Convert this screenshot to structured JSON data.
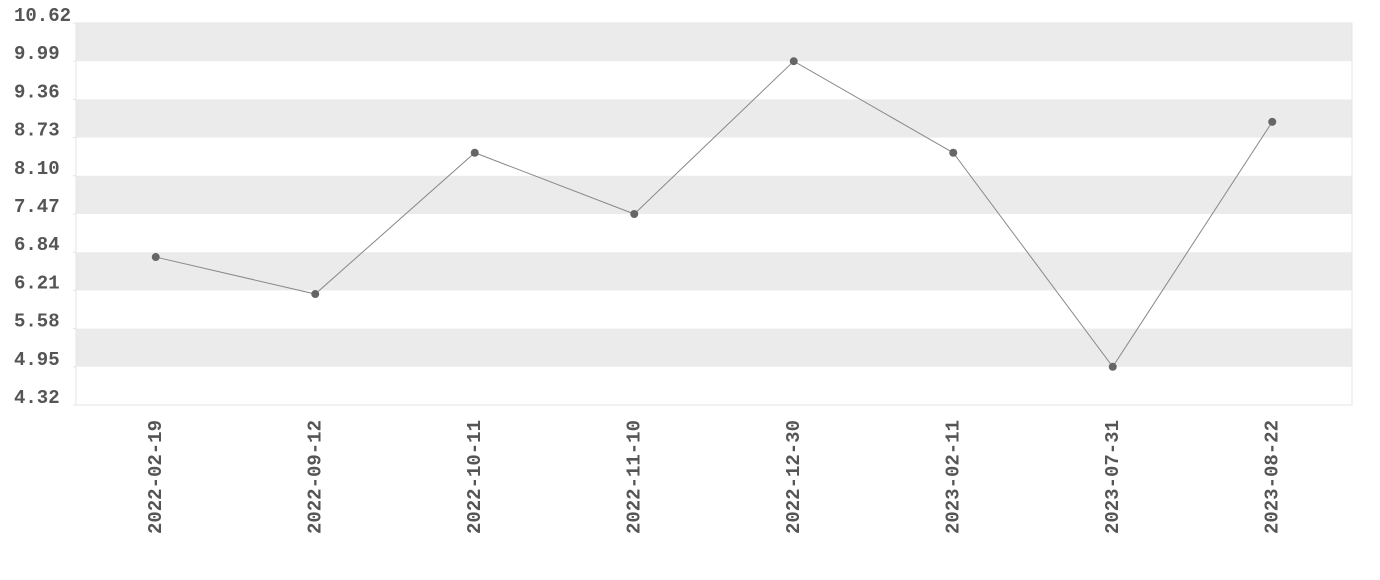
{
  "chart_data": {
    "type": "line",
    "categories": [
      "2022-02-19",
      "2022-09-12",
      "2022-10-11",
      "2022-11-10",
      "2022-12-30",
      "2023-02-11",
      "2023-07-31",
      "2023-08-22"
    ],
    "series": [
      {
        "color": "#666666",
        "values": [
          6.76,
          6.15,
          8.48,
          7.47,
          9.99,
          8.48,
          4.95,
          8.99
        ]
      }
    ],
    "ylim": [
      4.32,
      10.62
    ],
    "yticks": [
      4.32,
      4.95,
      5.58,
      6.21,
      6.84,
      7.47,
      {
        "value": 8.1,
        "label": "8.10"
      },
      8.73,
      9.36,
      9.99,
      10.62
    ],
    "grid": true
  }
}
